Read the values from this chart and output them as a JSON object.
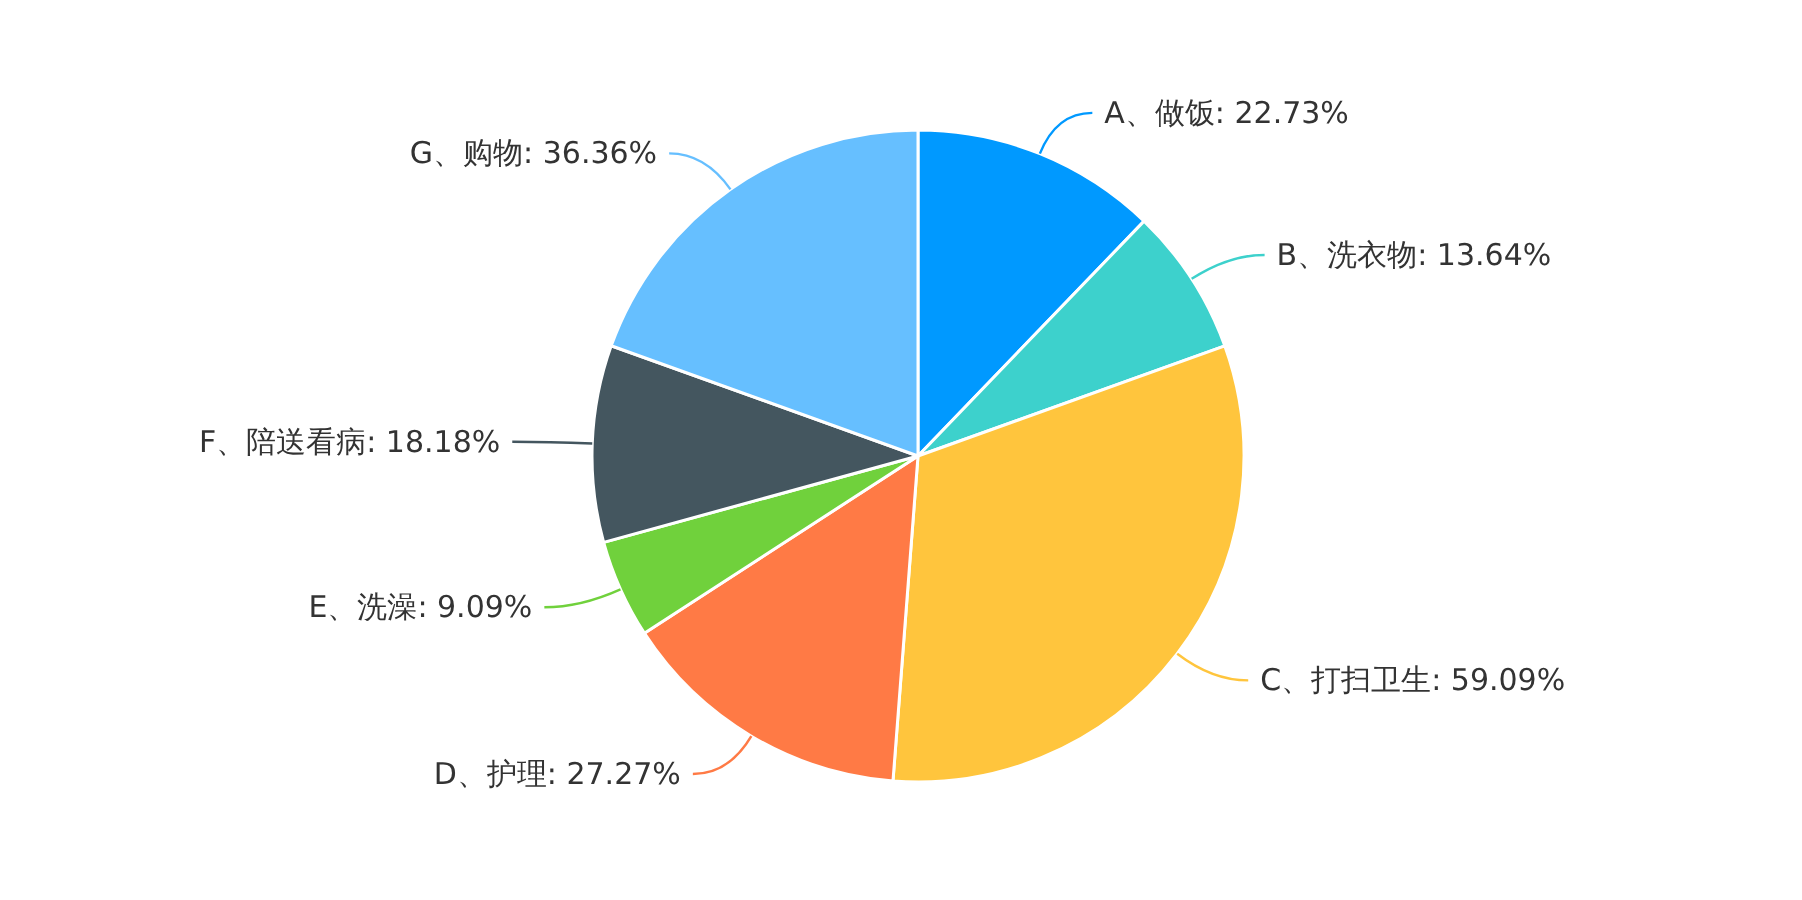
{
  "chart_data": {
    "type": "pie",
    "categories": [
      "A、做饭",
      "B、洗衣物",
      "C、打扫卫生",
      "D、护理",
      "E、洗澡",
      "F、陪送看病",
      "G、购物"
    ],
    "values": [
      22.73,
      13.64,
      59.09,
      27.27,
      9.09,
      18.18,
      36.36
    ],
    "colors": [
      "#0099ff",
      "#3dd1cc",
      "#ffc53d",
      "#ff7a45",
      "#70d13c",
      "#44565f",
      "#66bfff"
    ],
    "value_labels": [
      ": 22.73%",
      ": 13.64%",
      ": 59.09%",
      ": 27.27%",
      ": 9.09%",
      ": 18.18%",
      ": 36.36%"
    ],
    "legend": false
  }
}
